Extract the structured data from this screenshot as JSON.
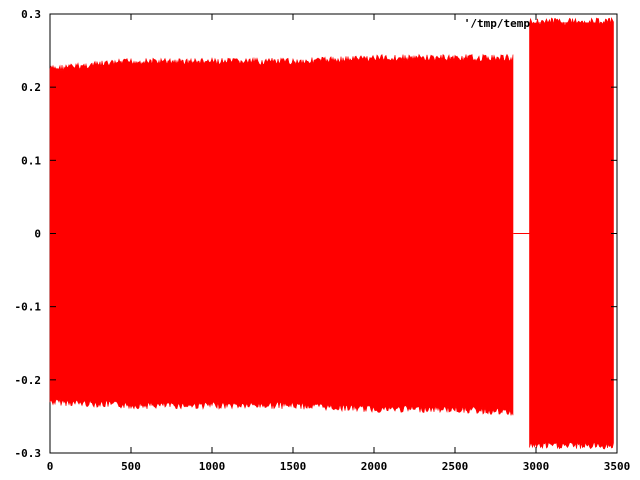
{
  "chart_data": {
    "type": "line",
    "title": "",
    "xlabel": "",
    "ylabel": "",
    "xlim": [
      0,
      3500
    ],
    "ylim": [
      -0.3,
      0.3
    ],
    "grid": false,
    "legend_position": "top-right",
    "x_ticks": [
      0,
      500,
      1000,
      1500,
      2000,
      2500,
      3000,
      3500
    ],
    "y_ticks": [
      -0.3,
      -0.2,
      -0.1,
      0,
      0.1,
      0.2,
      0.3
    ],
    "x_tick_labels": [
      "0",
      "500",
      "1000",
      "1500",
      "2000",
      "2500",
      "3000",
      "3500"
    ],
    "y_tick_labels": [
      "-0.3",
      "-0.2",
      "-0.1",
      "0",
      "0.1",
      "0.2",
      "0.3"
    ],
    "series": [
      {
        "name": "'/tmp/temp",
        "color": "#ff0000",
        "style": "dense oscillation",
        "segments": [
          {
            "x_start": 0,
            "x_end": 2860,
            "envelope_x": [
              0,
              500,
              1000,
              1500,
              2000,
              2500,
              2860
            ],
            "upper": [
              0.225,
              0.235,
              0.235,
              0.235,
              0.24,
              0.24,
              0.24
            ],
            "lower": [
              -0.23,
              -0.235,
              -0.235,
              -0.235,
              -0.24,
              -0.24,
              -0.245
            ]
          },
          {
            "x_start": 2860,
            "x_end": 2960,
            "envelope_x": [
              2860,
              2960
            ],
            "upper": [
              0,
              0
            ],
            "lower": [
              0,
              0
            ]
          },
          {
            "x_start": 2960,
            "x_end": 3480,
            "envelope_x": [
              2960,
              3200,
              3480
            ],
            "upper": [
              0.29,
              0.29,
              0.29
            ],
            "lower": [
              -0.29,
              -0.29,
              -0.29
            ]
          }
        ]
      }
    ]
  }
}
